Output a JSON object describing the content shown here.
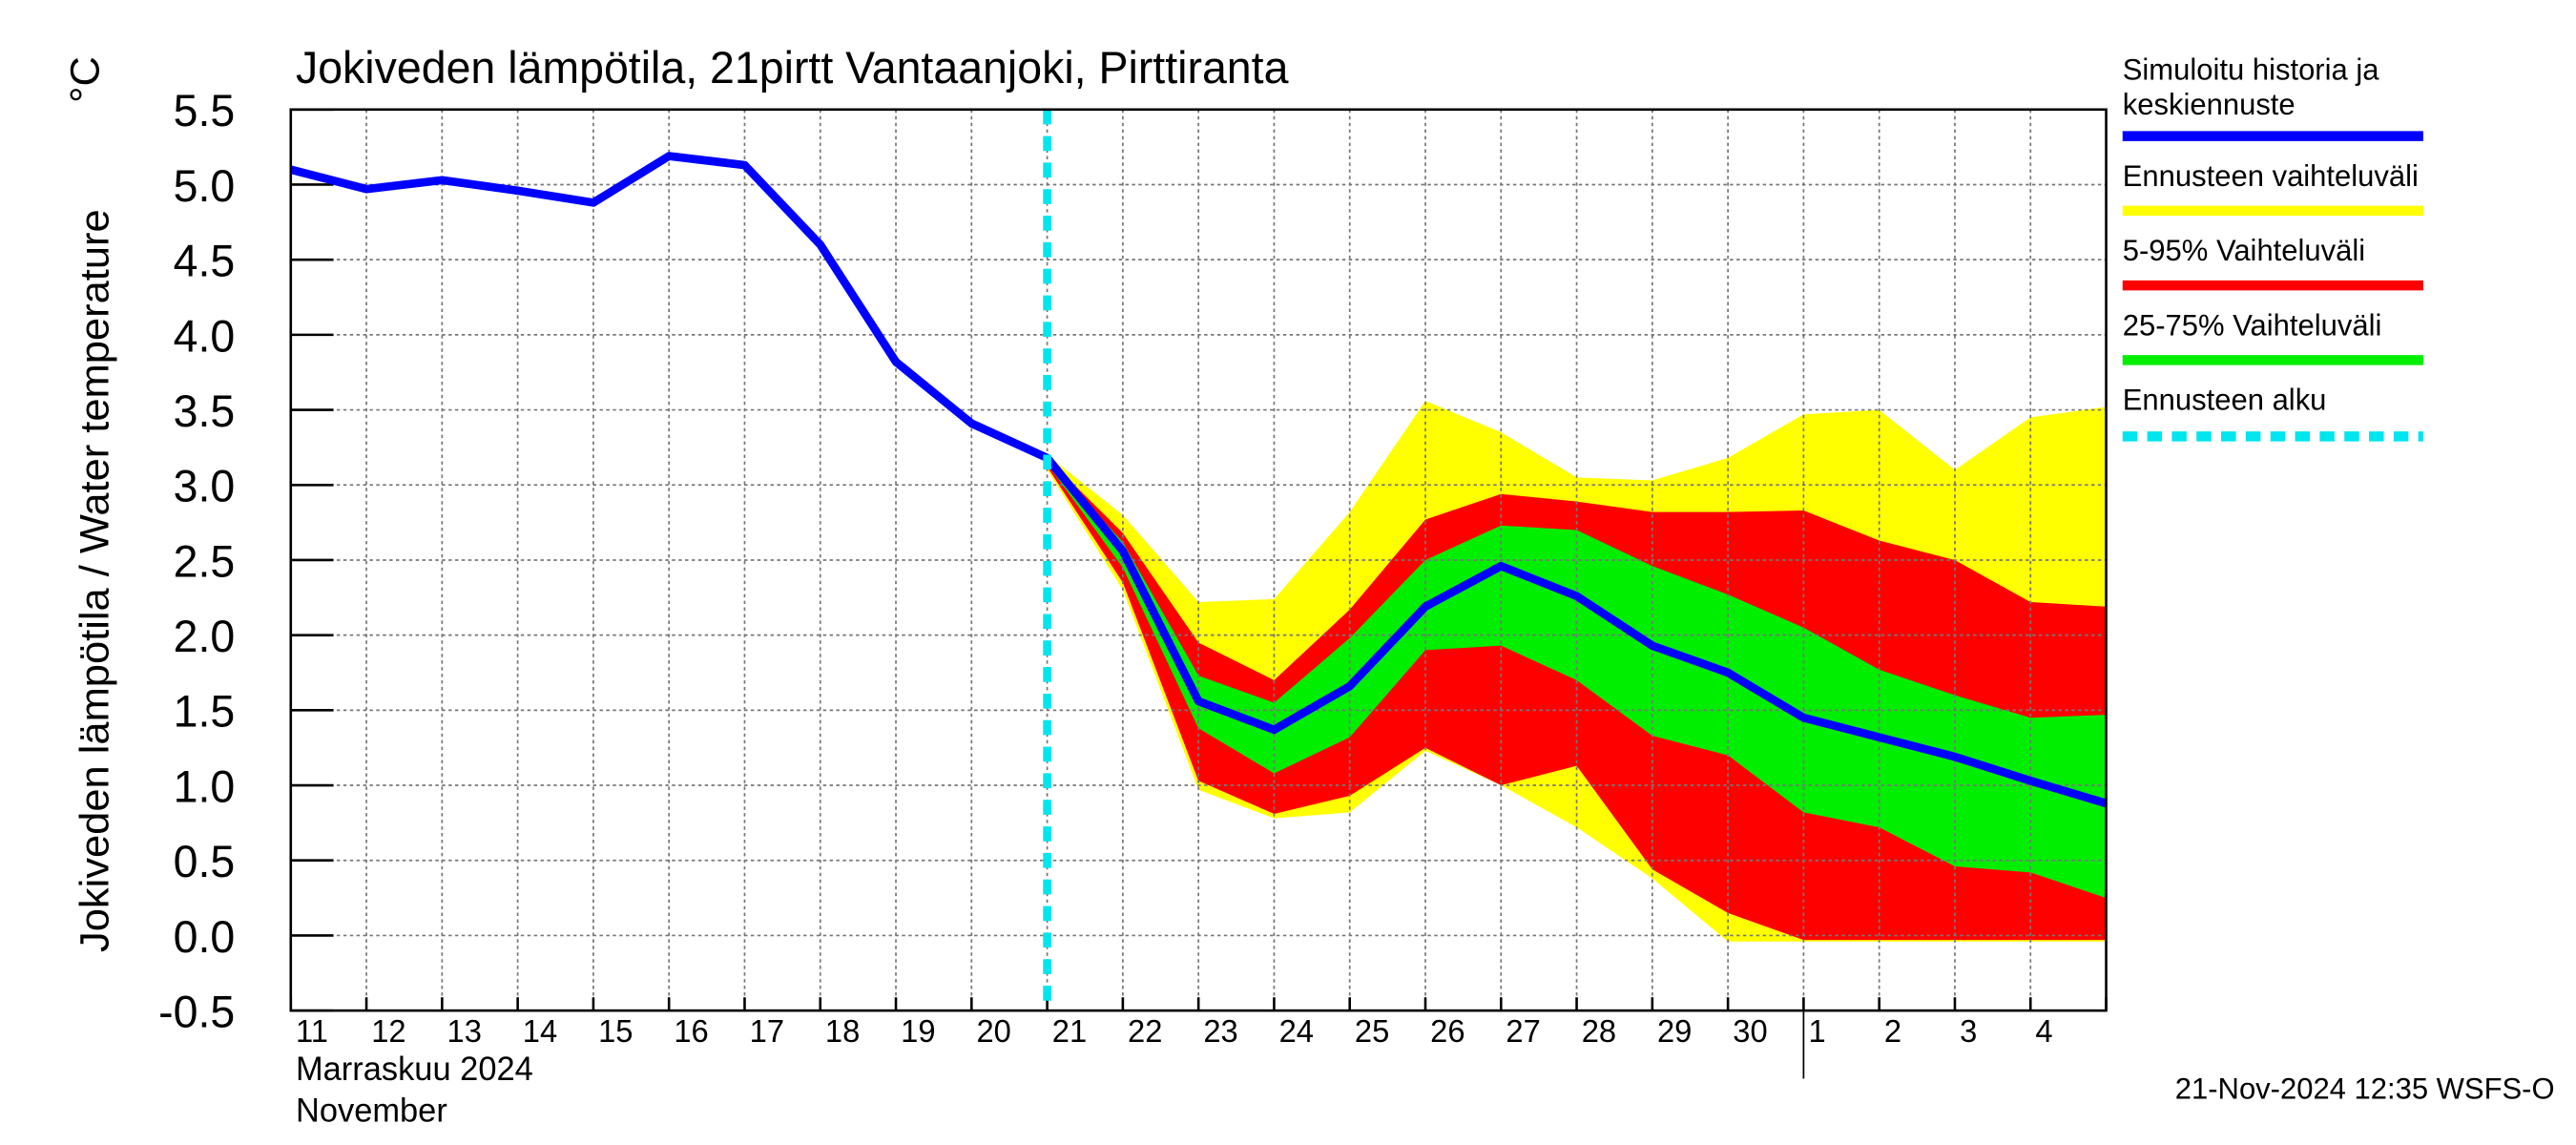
{
  "chart_data": {
    "type": "band-line",
    "title": "Jokiveden lämpötila, 21pirtt Vantaanjoki, Pirttiranta",
    "y_label": "Jokiveden lämpötila / Water temperature",
    "y_unit": "°C",
    "month_label": "Marraskuu 2024",
    "month_label_en": "November",
    "footer": "21-Nov-2024 12:35 WSFS-O",
    "categories": [
      "11",
      "12",
      "13",
      "14",
      "15",
      "16",
      "17",
      "18",
      "19",
      "20",
      "21",
      "22",
      "23",
      "24",
      "25",
      "26",
      "27",
      "28",
      "29",
      "30",
      "1",
      "2",
      "3",
      "4",
      null
    ],
    "month_start": "1",
    "ylim": [
      -0.5,
      5.5
    ],
    "yticks": [
      -0.5,
      {
        "value": 0,
        "label": "0.0"
      },
      0.5,
      {
        "value": 1,
        "label": "1.0"
      },
      1.5,
      {
        "value": 2,
        "label": "2.0"
      },
      2.5,
      {
        "value": 3,
        "label": "3.0"
      },
      3.5,
      {
        "value": 4,
        "label": "4.0"
      },
      4.5,
      {
        "value": 5,
        "label": "5.0"
      },
      5.5
    ],
    "grid": true,
    "series": [
      {
        "name": "Simuloitu historia ja keskiennuste",
        "color": "#0000ff",
        "kind": "line",
        "values": [
          5.1,
          4.97,
          5.03,
          4.96,
          4.88,
          5.19,
          5.13,
          4.6,
          3.82,
          3.41,
          3.18,
          2.56,
          1.56,
          1.37,
          1.66,
          2.19,
          2.46,
          2.26,
          1.93,
          1.75,
          1.45,
          1.32,
          1.19,
          1.03,
          0.88
        ]
      },
      {
        "name": "Ennusteen vaihteluväli",
        "color": "#ffff00",
        "kind": "band",
        "upper": [
          null,
          null,
          null,
          null,
          null,
          null,
          null,
          null,
          null,
          null,
          3.2,
          2.8,
          2.22,
          2.24,
          2.82,
          3.56,
          3.35,
          3.05,
          3.03,
          3.18,
          3.47,
          3.5,
          3.1,
          3.45,
          3.52
        ],
        "lower": [
          null,
          null,
          null,
          null,
          null,
          null,
          null,
          null,
          null,
          null,
          3.1,
          2.3,
          0.97,
          0.78,
          0.82,
          1.23,
          1.0,
          0.72,
          0.38,
          -0.04,
          -0.04,
          -0.04,
          -0.04,
          -0.04,
          -0.04
        ]
      },
      {
        "name": "5-95% Vaihteluväli",
        "color": "#ff0000",
        "kind": "band",
        "upper": [
          null,
          null,
          null,
          null,
          null,
          null,
          null,
          null,
          null,
          null,
          3.18,
          2.68,
          1.95,
          1.7,
          2.17,
          2.77,
          2.94,
          2.89,
          2.82,
          2.82,
          2.83,
          2.63,
          2.5,
          2.22,
          2.19
        ],
        "lower": [
          null,
          null,
          null,
          null,
          null,
          null,
          null,
          null,
          null,
          null,
          3.12,
          2.35,
          1.03,
          0.81,
          0.93,
          1.25,
          1.0,
          1.13,
          0.44,
          0.15,
          -0.03,
          -0.03,
          -0.03,
          -0.03,
          -0.03
        ]
      },
      {
        "name": "25-75% Vaihteluväli",
        "color": "#00ee00",
        "kind": "band",
        "upper": [
          null,
          null,
          null,
          null,
          null,
          null,
          null,
          null,
          null,
          null,
          3.17,
          2.62,
          1.73,
          1.55,
          1.98,
          2.5,
          2.73,
          2.7,
          2.46,
          2.27,
          2.05,
          1.77,
          1.6,
          1.45,
          1.47
        ],
        "lower": [
          null,
          null,
          null,
          null,
          null,
          null,
          null,
          null,
          null,
          null,
          3.14,
          2.45,
          1.38,
          1.08,
          1.32,
          1.9,
          1.93,
          1.7,
          1.33,
          1.2,
          0.82,
          0.72,
          0.46,
          0.42,
          0.25
        ]
      },
      {
        "name": "Ennusteen alku",
        "color": "#00e5ee",
        "kind": "vline",
        "x": "21"
      }
    ]
  }
}
